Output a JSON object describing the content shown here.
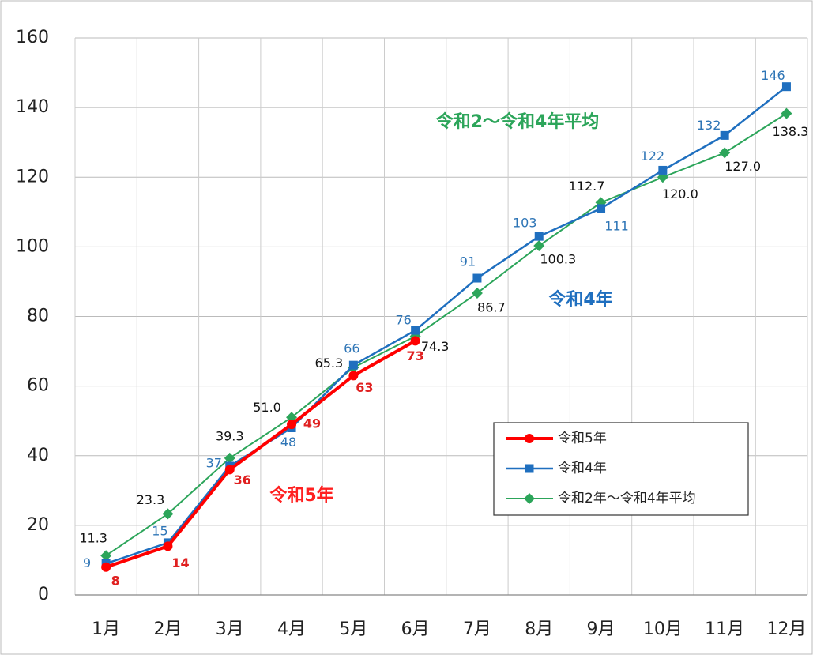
{
  "chart_data": {
    "type": "line",
    "categories": [
      "1月",
      "2月",
      "3月",
      "4月",
      "5月",
      "6月",
      "7月",
      "8月",
      "9月",
      "10月",
      "11月",
      "12月"
    ],
    "ylim": [
      0,
      160
    ],
    "yticks": [
      0,
      20,
      40,
      60,
      80,
      100,
      120,
      140,
      160
    ],
    "grid": true,
    "annotations": [
      "令和2～令和4年平均",
      "令和4年",
      "令和5年"
    ],
    "series": [
      {
        "name": "令和5年",
        "color": "#ff0000",
        "values": [
          8,
          14,
          36,
          49,
          63,
          73,
          null,
          null,
          null,
          null,
          null,
          null
        ]
      },
      {
        "name": "令和4年",
        "color": "#1f6fbf",
        "values": [
          9,
          15,
          37,
          48,
          66,
          76,
          91,
          103,
          111,
          122,
          132,
          146
        ]
      },
      {
        "name": "令和2年～令和4年平均",
        "color": "#2ca55a",
        "values": [
          11.3,
          23.3,
          39.3,
          51,
          65.3,
          74.3,
          86.7,
          100.3,
          112.7,
          120,
          127,
          138.3
        ],
        "value_labels": [
          "11.3",
          "23.3",
          "39.3",
          "51.0",
          "65.3",
          "74.3",
          "86.7",
          "100.3",
          "112.7",
          "120.0",
          "127.0",
          "138.3"
        ]
      }
    ]
  }
}
